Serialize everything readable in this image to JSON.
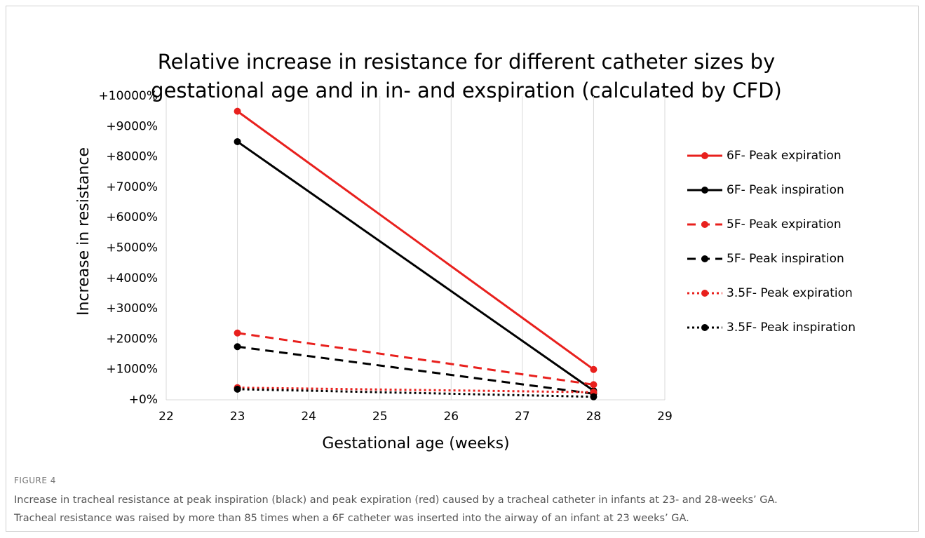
{
  "chart_data": {
    "type": "line",
    "title": [
      "Relative increase in resistance for different catheter sizes by",
      "gestational age and in in- and exspiration (calculated by CFD)"
    ],
    "x_label": "Gestational age (weeks)",
    "y_label": "Increase in resistance",
    "x": [
      23,
      28
    ],
    "xlim": [
      22,
      29
    ],
    "xticks": [
      22,
      23,
      24,
      25,
      26,
      27,
      28,
      29
    ],
    "ylim": [
      0,
      10000
    ],
    "yticks": [
      {
        "value": 0,
        "label": "+0%"
      },
      {
        "value": 1000,
        "label": "+1000%"
      },
      {
        "value": 2000,
        "label": "+2000%"
      },
      {
        "value": 3000,
        "label": "+3000%"
      },
      {
        "value": 4000,
        "label": "+4000%"
      },
      {
        "value": 5000,
        "label": "+5000%"
      },
      {
        "value": 6000,
        "label": "+6000%"
      },
      {
        "value": 7000,
        "label": "+7000%"
      },
      {
        "value": 8000,
        "label": "+8000%"
      },
      {
        "value": 9000,
        "label": "+9000%"
      },
      {
        "value": 10000,
        "label": "+10000%"
      }
    ],
    "grid": "x",
    "legend": "right",
    "series": [
      {
        "name": "6F- Peak expiration",
        "color": "#e8201d",
        "dash": "solid",
        "values": [
          9500,
          1000
        ]
      },
      {
        "name": "6F- Peak inspiration",
        "color": "#000000",
        "dash": "solid",
        "values": [
          8500,
          300
        ]
      },
      {
        "name": "5F- Peak expiration",
        "color": "#e8201d",
        "dash": "dashed",
        "values": [
          2200,
          500
        ]
      },
      {
        "name": "5F- Peak inspiration",
        "color": "#000000",
        "dash": "dashed",
        "values": [
          1750,
          200
        ]
      },
      {
        "name": "3.5F- Peak expiration",
        "color": "#e8201d",
        "dash": "dotted",
        "values": [
          400,
          250
        ]
      },
      {
        "name": "3.5F- Peak inspiration",
        "color": "#000000",
        "dash": "dotted",
        "values": [
          350,
          100
        ]
      }
    ]
  },
  "figure_label": "FIGURE 4",
  "caption": [
    "Increase in tracheal resistance at peak inspiration (black) and peak expiration (red) caused by a tracheal catheter in infants at 23- and 28-weeks’ GA.",
    "Tracheal resistance was raised by more than 85 times when a 6F catheter was inserted into the airway of an infant at 23 weeks’ GA."
  ]
}
